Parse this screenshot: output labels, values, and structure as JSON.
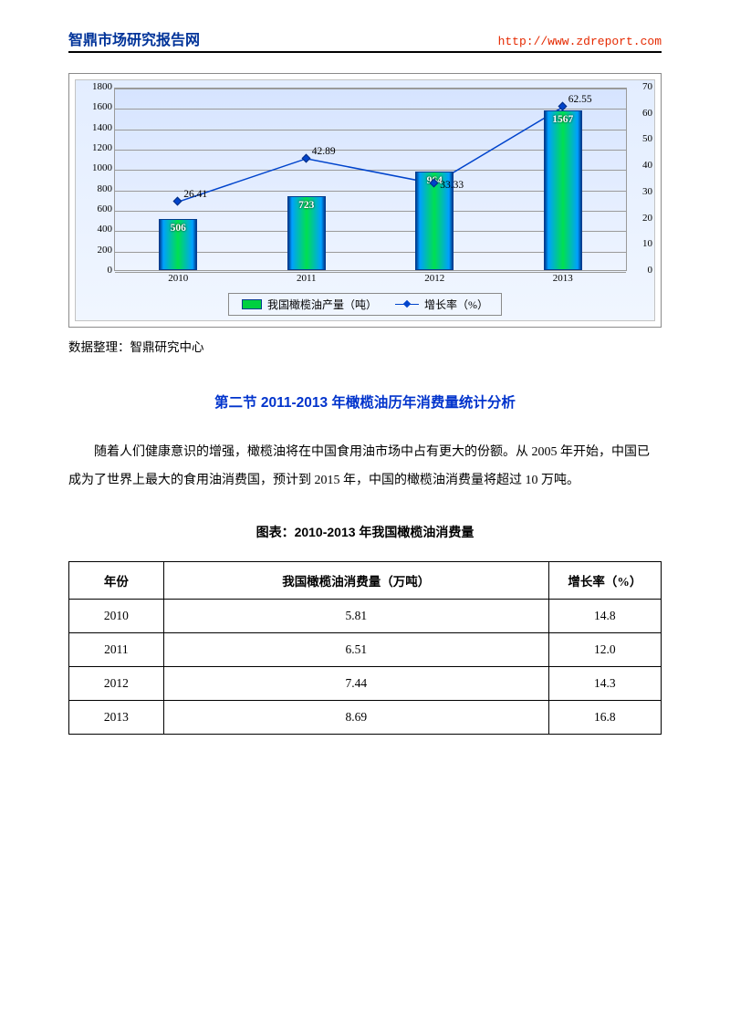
{
  "header": {
    "title": "智鼎市场研究报告网",
    "url": "http://www.zdreport.com"
  },
  "chart": {
    "type": "bar+line",
    "categories": [
      "2010",
      "2011",
      "2012",
      "2013"
    ],
    "bars": {
      "values": [
        506,
        723,
        964,
        1567
      ],
      "label_color": "#ffffff"
    },
    "line": {
      "values": [
        26.41,
        42.89,
        33.33,
        62.55
      ],
      "color": "#0044cc"
    },
    "y_left": {
      "min": 0,
      "max": 1800,
      "step": 200,
      "ticks": [
        "0",
        "200",
        "400",
        "600",
        "800",
        "1000",
        "1200",
        "1400",
        "1600",
        "1800"
      ]
    },
    "y_right": {
      "min": 0,
      "max": 70,
      "step": 10,
      "ticks": [
        "0",
        "10",
        "20",
        "30",
        "40",
        "50",
        "60",
        "70"
      ]
    },
    "legend": {
      "bar": "我国橄榄油产量（吨）",
      "line": "增长率（%）"
    },
    "palette": {
      "plot_bg_top": "#d6e4ff",
      "plot_bg_bot": "#eef4ff",
      "grid": "#9a9a9a",
      "bar_gradient": [
        "#003c8f",
        "#00a0ff",
        "#00e050",
        "#00a0ff",
        "#003c8f"
      ],
      "line": "#0044cc"
    },
    "source_label": "数据整理：智鼎研究中心"
  },
  "section_title": "第二节 2011-2013 年橄榄油历年消费量统计分析",
  "paragraph": "随着人们健康意识的增强，橄榄油将在中国食用油市场中占有更大的份额。从 2005 年开始，中国已成为了世界上最大的食用油消费国，预计到 2015 年，中国的橄榄油消费量将超过 10 万吨。",
  "table": {
    "title": "图表：2010-2013 年我国橄榄油消费量",
    "columns": [
      "年份",
      "我国橄榄油消费量（万吨）",
      "增长率（%）"
    ],
    "rows": [
      [
        "2010",
        "5.81",
        "14.8"
      ],
      [
        "2011",
        "6.51",
        "12.0"
      ],
      [
        "2012",
        "7.44",
        "14.3"
      ],
      [
        "2013",
        "8.69",
        "16.8"
      ]
    ]
  }
}
